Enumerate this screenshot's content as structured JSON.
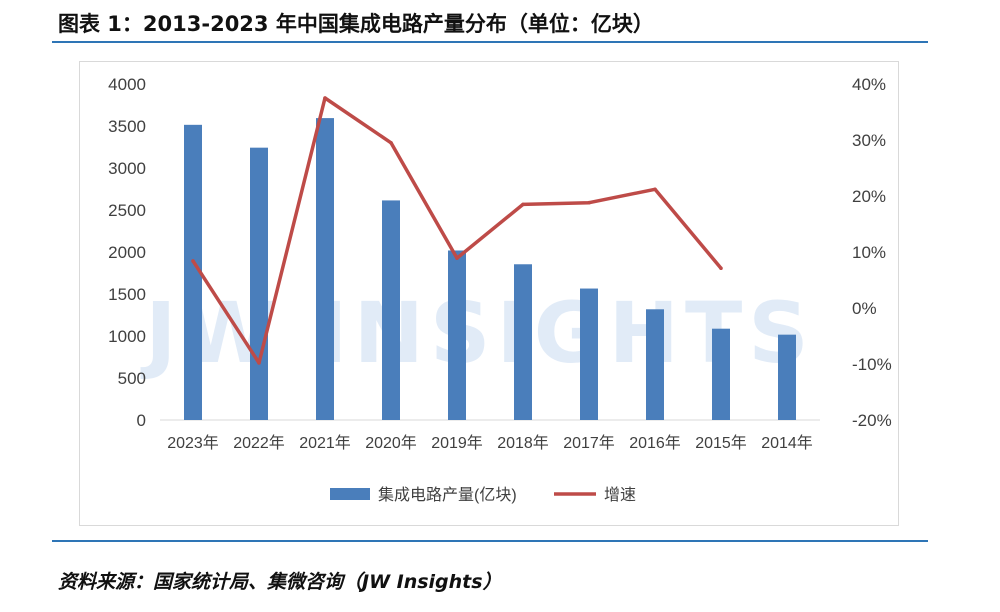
{
  "title": "图表 1：2013-2023 年中国集成电路产量分布（单位：亿块）",
  "source": "资料来源：国家统计局、集微咨询（JW Insights）",
  "watermark": "JW INSIGHTS",
  "colors": {
    "bar": "#4a7ebb",
    "line": "#be4b48",
    "rule": "#2e75b6",
    "grid": "#d9d9d9"
  },
  "chart_data": {
    "type": "bar",
    "categories": [
      "2023年",
      "2022年",
      "2021年",
      "2020年",
      "2019年",
      "2018年",
      "2017年",
      "2016年",
      "2015年",
      "2014年"
    ],
    "series": [
      {
        "name": "集成电路产量(亿块)",
        "type": "bar",
        "axis": "left",
        "values": [
          3514,
          3242,
          3594,
          2614,
          2018,
          1854,
          1565,
          1318,
          1087,
          1016
        ]
      },
      {
        "name": "增速",
        "type": "line",
        "axis": "right",
        "values": [
          8.4,
          -9.8,
          37.5,
          29.5,
          8.9,
          18.5,
          18.8,
          21.2,
          7.1,
          null
        ]
      }
    ],
    "left_axis": {
      "ylim": [
        0,
        4000
      ],
      "ticks": [
        "0",
        "500",
        "1000",
        "1500",
        "2000",
        "2500",
        "3000",
        "3500",
        "4000"
      ]
    },
    "right_axis": {
      "ylim": [
        -20,
        40
      ],
      "ticks": [
        "-20%",
        "-10%",
        "0%",
        "10%",
        "20%",
        "30%",
        "40%"
      ]
    },
    "legend": {
      "position": "bottom",
      "entries": [
        "集成电路产量(亿块)",
        "增速"
      ]
    },
    "grid": false
  }
}
